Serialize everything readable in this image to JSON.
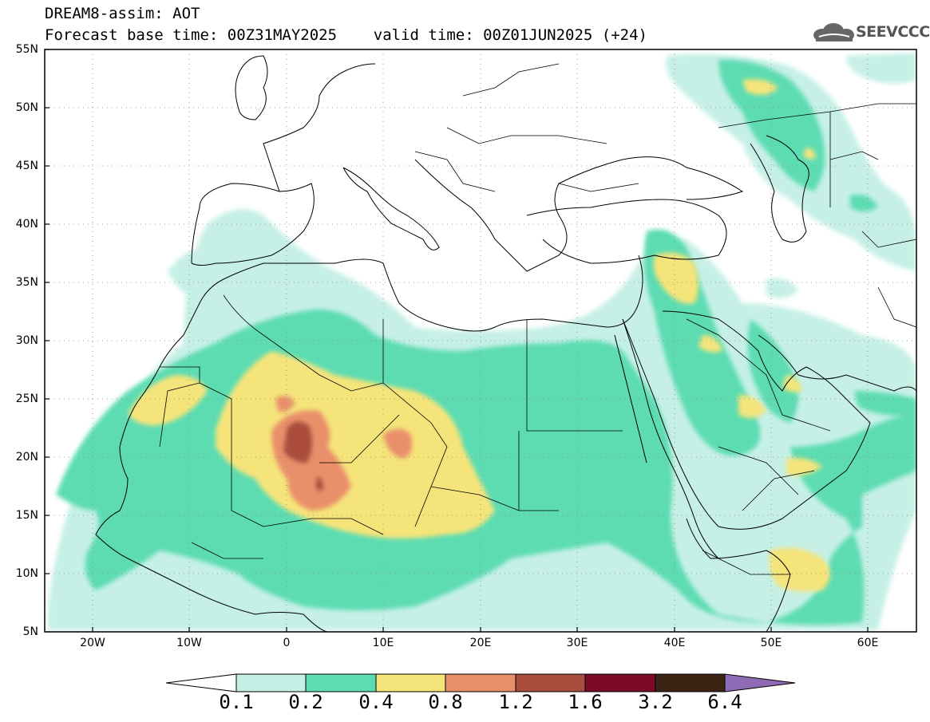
{
  "header": {
    "line1": "DREAM8-assim: AOT",
    "line2": "Forecast base time: 00Z31MAY2025    valid time: 00Z01JUN2025 (+24)"
  },
  "logo": {
    "text": "SEEVCCC",
    "icon": "cloud-icon"
  },
  "map": {
    "lat_labels": [
      "55N",
      "50N",
      "45N",
      "40N",
      "35N",
      "30N",
      "25N",
      "20N",
      "15N",
      "10N",
      "5N"
    ],
    "lon_labels": [
      "20W",
      "10W",
      "0",
      "10E",
      "20E",
      "30E",
      "40E",
      "50E",
      "60E"
    ],
    "lat_range": [
      5,
      55
    ],
    "lon_range": [
      -25,
      65
    ]
  },
  "legend": {
    "labels": [
      "0.1",
      "0.2",
      "0.4",
      "0.8",
      "1.2",
      "1.6",
      "3.2",
      "6.4"
    ],
    "colors": [
      "#ffffff",
      "#c6f0e6",
      "#5ddcb2",
      "#f5e47a",
      "#e9906a",
      "#aa4c3e",
      "#7a0a28",
      "#3b2413",
      "#8e6bb5"
    ]
  },
  "field_colors": {
    "c01": "#c6f0e6",
    "c02": "#5ddcb2",
    "c04": "#f5e47a",
    "c08": "#e9906a",
    "c12": "#aa4c3e"
  }
}
